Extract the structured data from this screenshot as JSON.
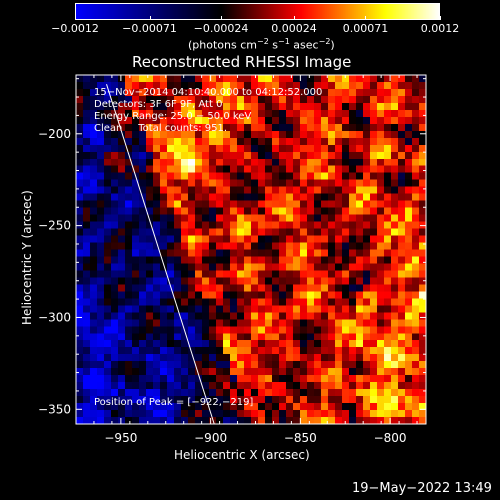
{
  "chart_data": {
    "type": "heatmap",
    "title": "Reconstructed RHESSI Image",
    "xlabel": "Heliocentric X (arcsec)",
    "ylabel": "Heliocentric Y (arcsec)",
    "xlim": [
      -975,
      -780
    ],
    "ylim": [
      -358,
      -168
    ],
    "x_ticks": [
      {
        "value": -950,
        "label": "−950"
      },
      {
        "value": -900,
        "label": "−900"
      },
      {
        "value": -850,
        "label": "−850"
      },
      {
        "value": -800,
        "label": "−800"
      }
    ],
    "y_ticks": [
      {
        "value": -200,
        "label": "−200"
      },
      {
        "value": -250,
        "label": "−250"
      },
      {
        "value": -300,
        "label": "−300"
      },
      {
        "value": -350,
        "label": "−350"
      }
    ],
    "colorbar": {
      "range": [
        -0.0012,
        0.0012
      ],
      "ticks": [
        {
          "value": -0.0012,
          "label": "−0.0012"
        },
        {
          "value": -0.00071,
          "label": "−0.00071"
        },
        {
          "value": -0.00024,
          "label": "−0.00024"
        },
        {
          "value": 0.00024,
          "label": "0.00024"
        },
        {
          "value": 0.00071,
          "label": "0.00071"
        },
        {
          "value": 0.0012,
          "label": "0.0012"
        }
      ],
      "unit_parts": [
        "(photons cm",
        "−2",
        " s",
        "−1",
        " asec",
        "−2",
        ")"
      ],
      "colormap": [
        "#0000ff",
        "#000000",
        "#ff0000",
        "#ffff00",
        "#ffffff"
      ]
    },
    "annotations": [
      "15−Nov−2014 04:10:40.000 to 04:12:52.000",
      "Detectors: 3F 6F 9F, Att 0",
      "Energy Range: 25.0 − 50.0 keV",
      "Clean     Total counts: 951."
    ],
    "peak_label": "Position of Peak = [−922,−219]",
    "limb_line": [
      [
        -958,
        -173
      ],
      [
        -898,
        -358
      ]
    ]
  },
  "footer": {
    "timestamp": "19−May−2022 13:49"
  }
}
